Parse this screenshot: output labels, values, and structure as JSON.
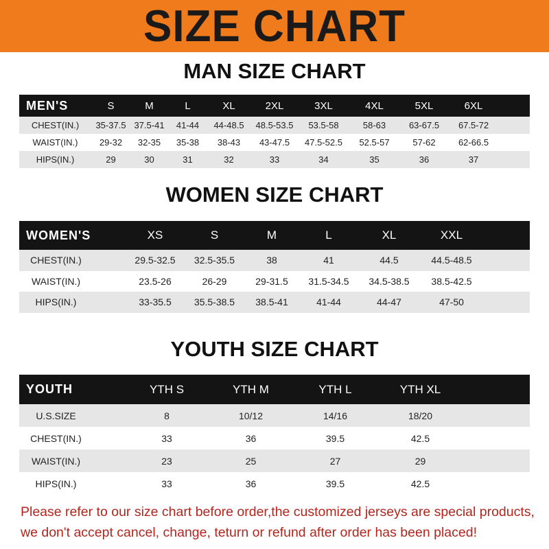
{
  "banner": {
    "title": "SIZE CHART",
    "color": "#f07b1c"
  },
  "men": {
    "title": "MAN SIZE CHART",
    "header": [
      "MEN'S",
      "S",
      "M",
      "L",
      "XL",
      "2XL",
      "3XL",
      "4XL",
      "5XL",
      "6XL"
    ],
    "rows": [
      [
        "CHEST(IN.)",
        "35-37.5",
        "37.5-41",
        "41-44",
        "44-48.5",
        "48.5-53.5",
        "53.5-58",
        "58-63",
        "63-67.5",
        "67.5-72"
      ],
      [
        "WAIST(IN.)",
        "29-32",
        "32-35",
        "35-38",
        "38-43",
        "43-47.5",
        "47.5-52.5",
        "52.5-57",
        "57-62",
        "62-66.5"
      ],
      [
        "HIPS(IN.)",
        "29",
        "30",
        "31",
        "32",
        "33",
        "34",
        "35",
        "36",
        "37"
      ]
    ]
  },
  "women": {
    "title": "WOMEN SIZE CHART",
    "header": [
      "WOMEN'S",
      "XS",
      "S",
      "M",
      "L",
      "XL",
      "XXL"
    ],
    "rows": [
      [
        "CHEST(IN.)",
        "29.5-32.5",
        "32.5-35.5",
        "38",
        "41",
        "44.5",
        "44.5-48.5"
      ],
      [
        "WAIST(IN.)",
        "23.5-26",
        "26-29",
        "29-31.5",
        "31.5-34.5",
        "34.5-38.5",
        "38.5-42.5"
      ],
      [
        "HIPS(IN.)",
        "33-35.5",
        "35.5-38.5",
        "38.5-41",
        "41-44",
        "44-47",
        "47-50"
      ]
    ]
  },
  "youth": {
    "title": "YOUTH SIZE CHART",
    "header": [
      "YOUTH",
      "YTH S",
      "YTH M",
      "YTH L",
      "YTH XL"
    ],
    "rows": [
      [
        "U.S.SIZE",
        "8",
        "10/12",
        "14/16",
        "18/20"
      ],
      [
        "CHEST(IN.)",
        "33",
        "36",
        "39.5",
        "42.5"
      ],
      [
        "WAIST(IN.)",
        "23",
        "25",
        "27",
        "29"
      ],
      [
        "HIPS(IN.)",
        "33",
        "36",
        "39.5",
        "42.5"
      ]
    ]
  },
  "notice": {
    "line1": "Please refer to our size chart before order,the customized jerseys are special products,",
    "line2": "we don't accept cancel, change, teturn or refund after order has been placed!",
    "color": "#b3261e"
  }
}
